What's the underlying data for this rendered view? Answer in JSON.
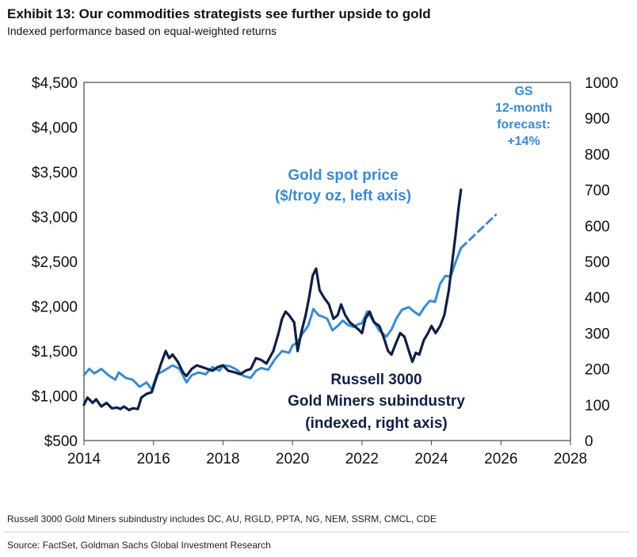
{
  "header": {
    "title": "Exhibit 13: Our commodities strategists see further upside to gold",
    "subtitle": "Indexed performance based on equal-weighted returns"
  },
  "chart_data": {
    "type": "line",
    "colors": {
      "gold": "#3b8ad0",
      "miners": "#0f1f45",
      "forecast": "#3b8ad0"
    },
    "x_axis": {
      "min": 2014,
      "max": 2028,
      "ticks": [
        2014,
        2016,
        2018,
        2020,
        2022,
        2024,
        2026,
        2028
      ],
      "tick_labels": [
        "2014",
        "2016",
        "2018",
        "2020",
        "2022",
        "2024",
        "2026",
        "2028"
      ]
    },
    "y_left": {
      "min": 500,
      "max": 4500,
      "ticks": [
        4500,
        4000,
        3500,
        3000,
        2500,
        2000,
        1500,
        1000,
        500
      ],
      "tick_labels": [
        "$4,500",
        "$4,000",
        "$3,500",
        "$3,000",
        "$2,500",
        "$2,000",
        "$1,500",
        "$1,000",
        "$500"
      ]
    },
    "y_right": {
      "min": 0,
      "max": 1000,
      "ticks": [
        1000,
        900,
        800,
        700,
        600,
        500,
        400,
        300,
        200,
        100,
        0
      ],
      "tick_labels": [
        "1000",
        "900",
        "800",
        "700",
        "600",
        "500",
        "400",
        "300",
        "200",
        "100",
        "0"
      ]
    },
    "series": [
      {
        "name": "Gold spot price ($/troy oz, left axis)",
        "axis": "left",
        "points": [
          [
            2014.0,
            1230
          ],
          [
            2014.15,
            1300
          ],
          [
            2014.3,
            1250
          ],
          [
            2014.5,
            1300
          ],
          [
            2014.7,
            1230
          ],
          [
            2014.9,
            1180
          ],
          [
            2015.0,
            1260
          ],
          [
            2015.2,
            1200
          ],
          [
            2015.4,
            1180
          ],
          [
            2015.6,
            1100
          ],
          [
            2015.8,
            1150
          ],
          [
            2015.95,
            1070
          ],
          [
            2016.1,
            1240
          ],
          [
            2016.3,
            1280
          ],
          [
            2016.55,
            1340
          ],
          [
            2016.75,
            1300
          ],
          [
            2016.95,
            1150
          ],
          [
            2017.1,
            1230
          ],
          [
            2017.3,
            1260
          ],
          [
            2017.5,
            1240
          ],
          [
            2017.7,
            1320
          ],
          [
            2017.9,
            1280
          ],
          [
            2018.0,
            1340
          ],
          [
            2018.2,
            1330
          ],
          [
            2018.4,
            1290
          ],
          [
            2018.6,
            1220
          ],
          [
            2018.8,
            1200
          ],
          [
            2018.95,
            1280
          ],
          [
            2019.1,
            1310
          ],
          [
            2019.3,
            1290
          ],
          [
            2019.5,
            1410
          ],
          [
            2019.7,
            1500
          ],
          [
            2019.9,
            1480
          ],
          [
            2020.0,
            1560
          ],
          [
            2020.15,
            1600
          ],
          [
            2020.3,
            1700
          ],
          [
            2020.45,
            1780
          ],
          [
            2020.6,
            1970
          ],
          [
            2020.75,
            1900
          ],
          [
            2020.9,
            1880
          ],
          [
            2021.0,
            1860
          ],
          [
            2021.15,
            1730
          ],
          [
            2021.3,
            1780
          ],
          [
            2021.45,
            1840
          ],
          [
            2021.6,
            1790
          ],
          [
            2021.75,
            1770
          ],
          [
            2021.9,
            1800
          ],
          [
            2022.0,
            1810
          ],
          [
            2022.15,
            1940
          ],
          [
            2022.3,
            1850
          ],
          [
            2022.5,
            1730
          ],
          [
            2022.7,
            1660
          ],
          [
            2022.85,
            1740
          ],
          [
            2023.0,
            1870
          ],
          [
            2023.15,
            1960
          ],
          [
            2023.35,
            1990
          ],
          [
            2023.5,
            1940
          ],
          [
            2023.65,
            1900
          ],
          [
            2023.8,
            1990
          ],
          [
            2023.95,
            2060
          ],
          [
            2024.1,
            2050
          ],
          [
            2024.25,
            2250
          ],
          [
            2024.4,
            2340
          ],
          [
            2024.55,
            2330
          ],
          [
            2024.7,
            2500
          ],
          [
            2024.85,
            2650
          ]
        ]
      },
      {
        "name": "Russell 3000 Gold Miners subindustry (indexed, right axis)",
        "axis": "right",
        "points": [
          [
            2014.0,
            100
          ],
          [
            2014.1,
            120
          ],
          [
            2014.25,
            105
          ],
          [
            2014.35,
            115
          ],
          [
            2014.5,
            95
          ],
          [
            2014.65,
            105
          ],
          [
            2014.8,
            90
          ],
          [
            2014.95,
            92
          ],
          [
            2015.05,
            88
          ],
          [
            2015.15,
            95
          ],
          [
            2015.3,
            85
          ],
          [
            2015.4,
            90
          ],
          [
            2015.55,
            88
          ],
          [
            2015.65,
            120
          ],
          [
            2015.8,
            130
          ],
          [
            2015.95,
            135
          ],
          [
            2016.1,
            180
          ],
          [
            2016.2,
            210
          ],
          [
            2016.35,
            250
          ],
          [
            2016.45,
            230
          ],
          [
            2016.55,
            240
          ],
          [
            2016.7,
            220
          ],
          [
            2016.85,
            190
          ],
          [
            2016.95,
            180
          ],
          [
            2017.1,
            200
          ],
          [
            2017.25,
            210
          ],
          [
            2017.4,
            205
          ],
          [
            2017.55,
            200
          ],
          [
            2017.7,
            195
          ],
          [
            2017.85,
            205
          ],
          [
            2018.0,
            210
          ],
          [
            2018.15,
            195
          ],
          [
            2018.35,
            190
          ],
          [
            2018.5,
            185
          ],
          [
            2018.65,
            195
          ],
          [
            2018.8,
            200
          ],
          [
            2018.95,
            230
          ],
          [
            2019.1,
            225
          ],
          [
            2019.25,
            215
          ],
          [
            2019.45,
            250
          ],
          [
            2019.6,
            300
          ],
          [
            2019.7,
            340
          ],
          [
            2019.8,
            360
          ],
          [
            2019.9,
            350
          ],
          [
            2020.05,
            330
          ],
          [
            2020.15,
            250
          ],
          [
            2020.25,
            300
          ],
          [
            2020.38,
            350
          ],
          [
            2020.48,
            400
          ],
          [
            2020.58,
            460
          ],
          [
            2020.68,
            480
          ],
          [
            2020.78,
            420
          ],
          [
            2020.9,
            400
          ],
          [
            2021.05,
            380
          ],
          [
            2021.18,
            340
          ],
          [
            2021.3,
            350
          ],
          [
            2021.4,
            380
          ],
          [
            2021.52,
            350
          ],
          [
            2021.65,
            330
          ],
          [
            2021.78,
            320
          ],
          [
            2021.9,
            310
          ],
          [
            2022.0,
            300
          ],
          [
            2022.1,
            340
          ],
          [
            2022.22,
            360
          ],
          [
            2022.35,
            330
          ],
          [
            2022.5,
            320
          ],
          [
            2022.62,
            290
          ],
          [
            2022.75,
            250
          ],
          [
            2022.85,
            240
          ],
          [
            2022.97,
            270
          ],
          [
            2023.1,
            300
          ],
          [
            2023.22,
            290
          ],
          [
            2023.35,
            250
          ],
          [
            2023.45,
            220
          ],
          [
            2023.55,
            245
          ],
          [
            2023.65,
            240
          ],
          [
            2023.78,
            280
          ],
          [
            2023.9,
            300
          ],
          [
            2024.0,
            320
          ],
          [
            2024.12,
            300
          ],
          [
            2024.25,
            320
          ],
          [
            2024.37,
            350
          ],
          [
            2024.5,
            420
          ],
          [
            2024.6,
            500
          ],
          [
            2024.7,
            580
          ],
          [
            2024.78,
            650
          ],
          [
            2024.85,
            700
          ]
        ]
      }
    ],
    "forecast": {
      "name": "GS 12-month forecast: +14%",
      "style": "dashed",
      "points": [
        [
          2024.85,
          2650
        ],
        [
          2025.85,
          3020
        ]
      ]
    },
    "annotations": {
      "gold_label_line1": "Gold spot price",
      "gold_label_line2": "($/troy oz, left axis)",
      "miners_label_line1": "Russell 3000",
      "miners_label_line2": "Gold Miners subindustry",
      "miners_label_line3": "(indexed, right axis)",
      "forecast_line1": "GS",
      "forecast_line2": "12-month",
      "forecast_line3": "forecast:",
      "forecast_line4": "+14%"
    }
  },
  "footer": {
    "note": "Russell 3000 Gold Miners subindustry includes DC, AU, RGLD, PPTA, NG, NEM, SSRM, CMCL, CDE",
    "source": "Source: FactSet, Goldman Sachs Global Investment Research"
  }
}
